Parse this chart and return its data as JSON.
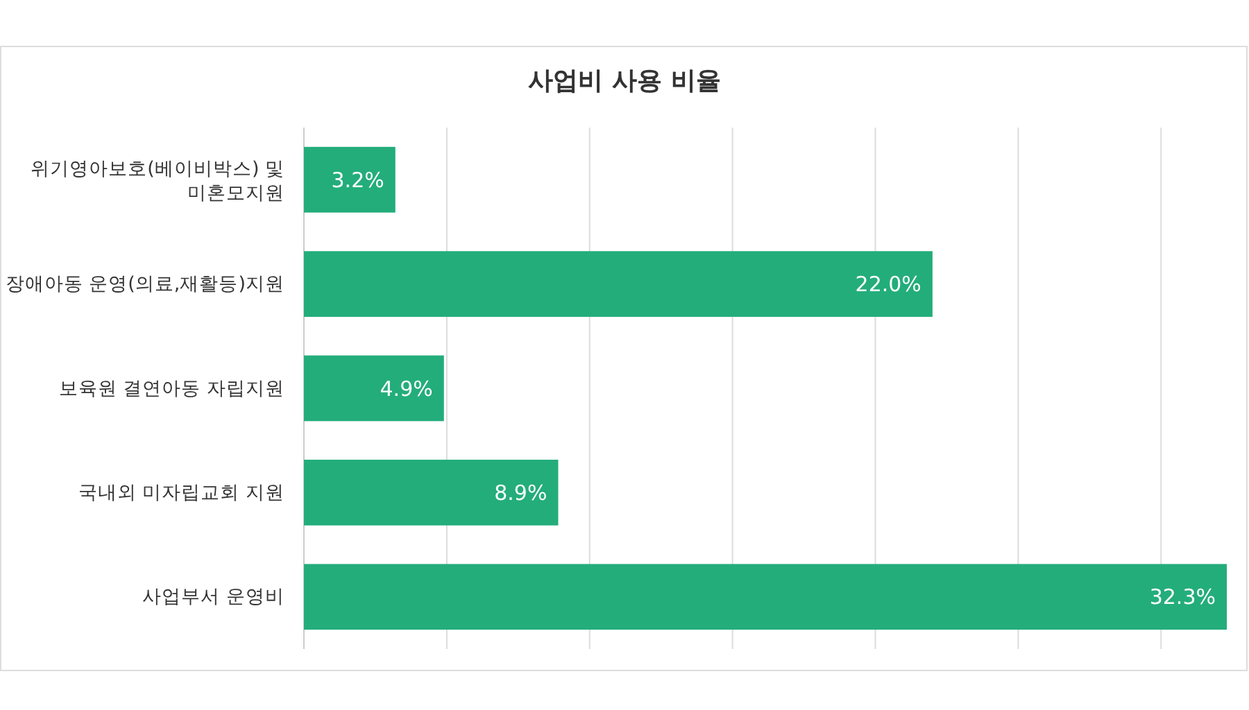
{
  "chart_data": {
    "type": "bar",
    "orientation": "horizontal",
    "title": "사업비 사용 비율",
    "categories": [
      "위기영아보호(베이비박스) 및 미혼모지원",
      "장애아동 운영(의료,재활등)지원",
      "보육원 결연아동 자립지원",
      "국내외 미자립교회 지원",
      "사업부서 운영비"
    ],
    "values": [
      3.2,
      22.0,
      4.9,
      8.9,
      32.3
    ],
    "value_labels": [
      "3.2%",
      "22.0%",
      "4.9%",
      "8.9%",
      "32.3%"
    ],
    "color": "#23ad7b",
    "xlim": [
      0,
      32.3
    ],
    "xticks": [
      {
        "value": 0,
        "label": null
      },
      {
        "value": 5,
        "label": null
      },
      {
        "value": 10,
        "label": null
      },
      {
        "value": 15,
        "label": null
      },
      {
        "value": 20,
        "label": null
      },
      {
        "value": 25,
        "label": null
      },
      {
        "value": 30,
        "label": null
      }
    ],
    "tick_labels": "y",
    "grid": "x"
  }
}
